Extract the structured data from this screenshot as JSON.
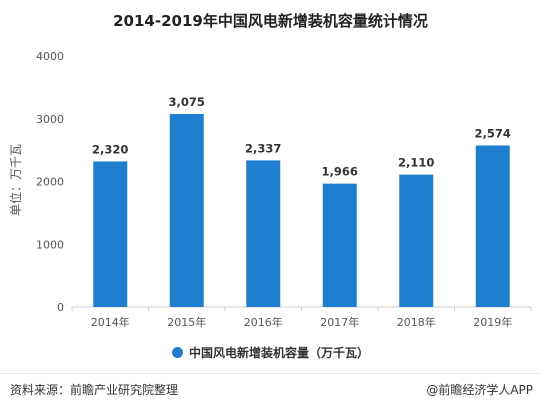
{
  "colors": {
    "bar": "#1f7fce",
    "axis": "#cccccc",
    "grid": "#eeeeee"
  },
  "chart_data": {
    "type": "bar",
    "title": "2014-2019年中国风电新增装机容量统计情况",
    "categories": [
      "2014年",
      "2015年",
      "2016年",
      "2017年",
      "2018年",
      "2019年"
    ],
    "series": [
      {
        "name": "中国风电新增装机容量（万千瓦）",
        "values": [
          2320,
          3075,
          2337,
          1966,
          2110,
          2574
        ],
        "labels": [
          "2,320",
          "3,075",
          "2,337",
          "1,966",
          "2,110",
          "2,574"
        ]
      }
    ],
    "ylabel": "单位：万千瓦",
    "ylim": [
      0,
      4000
    ],
    "yticks": [
      0,
      1000,
      2000,
      3000,
      4000
    ],
    "grid": false,
    "legend": "bottom-center"
  },
  "footer": {
    "source": "资料来源：前瞻产业研究院整理",
    "credit": "@前瞻经济学人APP"
  }
}
